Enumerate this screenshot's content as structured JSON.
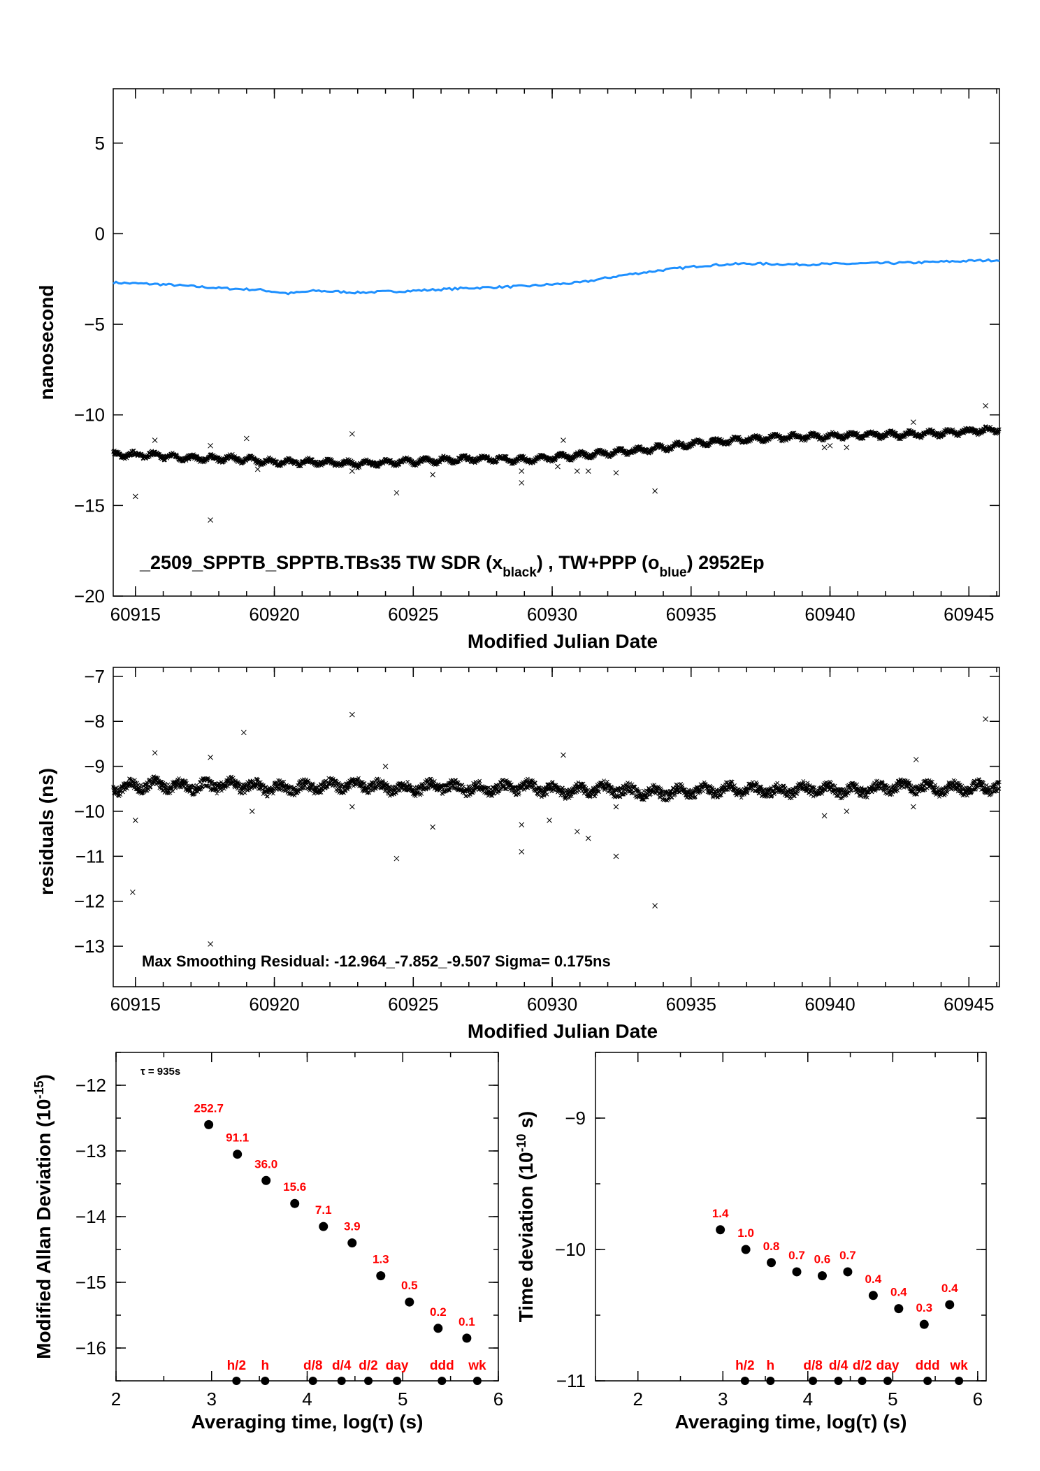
{
  "chart_data": [
    {
      "type": "line",
      "title": "_2509_SPPTB_SPPTB.TBs35     TW SDR (x",
      "title_parts": {
        "prefix": "_2509_SPPTB_SPPTB.TBs35     TW SDR (x",
        "sub1": "black",
        "mid": ") ,  TW+PPP (o",
        "sub2": "blue",
        "suffix": ")  2952Ep"
      },
      "xlabel": "Modified Julian Date",
      "ylabel": "nanosecond",
      "xlim": [
        60914.2,
        60946.1
      ],
      "ylim": [
        -20,
        8
      ],
      "xticks": [
        "60915",
        "60920",
        "60925",
        "60930",
        "60935",
        "60940",
        "60945"
      ],
      "yticks": [
        "5",
        "0",
        "−5",
        "−10",
        "−15",
        "−20"
      ],
      "series": [
        {
          "marker": "line",
          "color": "#1e90ff",
          "x": [
            60914.2,
            60916,
            60918,
            60919.5,
            60920.5,
            60921.5,
            60923,
            60925,
            60927,
            60929,
            60931,
            60932.5,
            60934,
            60935.5,
            60937,
            60939,
            60941,
            60943,
            60945,
            60946.1
          ],
          "y": [
            -2.7,
            -2.8,
            -3.0,
            -3.1,
            -3.3,
            -3.15,
            -3.25,
            -3.15,
            -3.0,
            -2.9,
            -2.7,
            -2.3,
            -2.0,
            -1.75,
            -1.65,
            -1.7,
            -1.65,
            -1.6,
            -1.5,
            -1.45
          ]
        },
        {
          "marker": "x",
          "color": "#000000",
          "x": [
            60914.2,
            60915.5,
            60917,
            60918.5,
            60920,
            60921.5,
            60923,
            60924.5,
            60926,
            60927.5,
            60929,
            60930.5,
            60932,
            60933.5,
            60935,
            60936.5,
            60938,
            60939.5,
            60941,
            60942.5,
            60944,
            60945,
            60946.1
          ],
          "y": [
            -12.2,
            -12.2,
            -12.4,
            -12.4,
            -12.6,
            -12.6,
            -12.7,
            -12.6,
            -12.5,
            -12.4,
            -12.5,
            -12.3,
            -12.1,
            -11.9,
            -11.6,
            -11.4,
            -11.25,
            -11.2,
            -11.1,
            -11.1,
            -11.0,
            -10.9,
            -10.8
          ],
          "outliers_x": [
            60915,
            60915.7,
            60917.7,
            60917.7,
            60919,
            60919.4,
            60922.8,
            60922.8,
            60924.4,
            60925.7,
            60928.9,
            60928.9,
            60930.2,
            60930.4,
            60930.9,
            60931.3,
            60932.3,
            60933.7,
            60939.8,
            60940,
            60940.6,
            60943,
            60945.6
          ],
          "outliers_y": [
            -14.5,
            -11.4,
            -11.7,
            -15.8,
            -11.3,
            -13.0,
            -11.05,
            -13.1,
            -14.3,
            -13.3,
            -13.1,
            -13.75,
            -12.85,
            -11.4,
            -13.1,
            -13.1,
            -13.2,
            -14.2,
            -11.8,
            -11.7,
            -11.8,
            -10.4,
            -9.5
          ]
        }
      ]
    },
    {
      "type": "scatter",
      "title": "Max Smoothing Residual: -12.964_-7.852_-9.507  Sigma= 0.175ns",
      "xlabel": "Modified Julian Date",
      "ylabel": "residuals (ns)",
      "xlim": [
        60914.2,
        60946.1
      ],
      "ylim": [
        -13.9,
        -6.8
      ],
      "xticks": [
        "60915",
        "60920",
        "60925",
        "60930",
        "60935",
        "60940",
        "60945"
      ],
      "yticks": [
        "−7",
        "−8",
        "−9",
        "−10",
        "−11",
        "−12",
        "−13"
      ],
      "series": [
        {
          "marker": "x",
          "color": "#000000",
          "x": [
            60914.2,
            60915.5,
            60917,
            60918.5,
            60920,
            60921.5,
            60923,
            60924.5,
            60926,
            60927.5,
            60929,
            60930.5,
            60932,
            60933.5,
            60935,
            60936.5,
            60938,
            60939.5,
            60941,
            60942.5,
            60944,
            60946.1
          ],
          "y": [
            -9.5,
            -9.4,
            -9.45,
            -9.4,
            -9.5,
            -9.45,
            -9.4,
            -9.5,
            -9.45,
            -9.5,
            -9.45,
            -9.55,
            -9.5,
            -9.6,
            -9.55,
            -9.5,
            -9.55,
            -9.5,
            -9.55,
            -9.45,
            -9.5,
            -9.45
          ],
          "outliers_x": [
            60914.9,
            60915,
            60915.7,
            60917.7,
            60917.7,
            60918.9,
            60919.2,
            60922.8,
            60922.8,
            60924,
            60924.4,
            60925.7,
            60928.9,
            60928.9,
            60929.9,
            60930.4,
            60930.9,
            60931.3,
            60932.3,
            60932.3,
            60933.7,
            60939.8,
            60940.6,
            60943,
            60943.1,
            60945.6
          ],
          "outliers_y": [
            -11.8,
            -10.2,
            -8.7,
            -8.8,
            -12.95,
            -8.25,
            -10.0,
            -7.85,
            -9.9,
            -9.0,
            -11.05,
            -10.35,
            -10.3,
            -10.9,
            -10.2,
            -8.75,
            -10.45,
            -10.6,
            -11.0,
            -9.9,
            -12.1,
            -10.1,
            -10.0,
            -9.9,
            -8.85,
            -7.95
          ]
        }
      ]
    },
    {
      "type": "scatter",
      "annotation": "τ = 935s",
      "xlabel": "Averaging time, log(τ) (s)",
      "ylabel": "Modified Allan Deviation (10",
      "ylabel_sup": "-15",
      "ylabel_end": ")",
      "xlim": [
        2,
        6
      ],
      "ylim": [
        -16.5,
        -11.5
      ],
      "xticks": [
        "2",
        "3",
        "4",
        "5",
        "6"
      ],
      "yticks": [
        "−12",
        "−13",
        "−14",
        "−15",
        "−16"
      ],
      "x": [
        2.97,
        3.27,
        3.57,
        3.87,
        4.17,
        4.47,
        4.77,
        5.07,
        5.37,
        5.67
      ],
      "y": [
        -12.6,
        -13.05,
        -13.45,
        -13.8,
        -14.15,
        -14.4,
        -14.9,
        -15.3,
        -15.7,
        -15.85
      ],
      "point_labels": [
        "252.7",
        "91.1",
        "36.0",
        "15.6",
        "7.1",
        "3.9",
        "1.3",
        "0.5",
        "0.2",
        "0.1"
      ],
      "markers": [
        "h/2",
        "h",
        "d/8",
        "d/4",
        "d/2",
        "day",
        "ddd",
        "wk"
      ],
      "marker_x": [
        3.26,
        3.56,
        4.06,
        4.36,
        4.64,
        4.94,
        5.41,
        5.78
      ]
    },
    {
      "type": "scatter",
      "xlabel": "Averaging time, log(τ) (s)",
      "ylabel": "Time deviation (10",
      "ylabel_sup": "-10",
      "ylabel_end": " s)",
      "xlim": [
        1.5,
        6.1
      ],
      "ylim": [
        -11,
        -8.5
      ],
      "xticks": [
        "2",
        "3",
        "4",
        "5",
        "6"
      ],
      "yticks": [
        "−9",
        "−10",
        "−11"
      ],
      "x": [
        2.97,
        3.27,
        3.57,
        3.87,
        4.17,
        4.47,
        4.77,
        5.07,
        5.37,
        5.67
      ],
      "y": [
        -9.85,
        -10.0,
        -10.1,
        -10.17,
        -10.2,
        -10.17,
        -10.35,
        -10.45,
        -10.57,
        -10.42
      ],
      "point_labels": [
        "1.4",
        "1.0",
        "0.8",
        "0.7",
        "0.6",
        "0.7",
        "0.4",
        "0.4",
        "0.3",
        "0.4"
      ],
      "markers": [
        "h/2",
        "h",
        "d/8",
        "d/4",
        "d/2",
        "day",
        "ddd",
        "wk"
      ],
      "marker_x": [
        3.26,
        3.56,
        4.06,
        4.36,
        4.64,
        4.94,
        5.41,
        5.78
      ]
    }
  ]
}
